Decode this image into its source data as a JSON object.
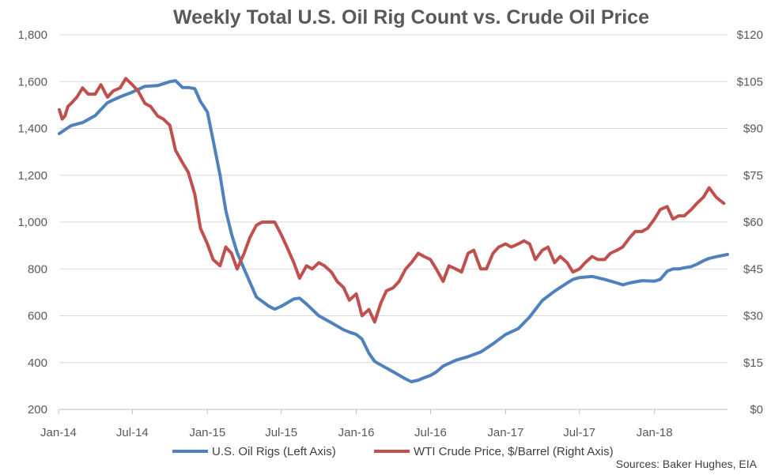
{
  "chart_data": {
    "type": "line",
    "title": "Weekly Total U.S. Oil Rig Count vs. Crude Oil Price",
    "source": "Sources: Baker Hughes, EIA",
    "x_axis": {
      "ticks": [
        "Jan-14",
        "Jul-14",
        "Jan-15",
        "Jul-15",
        "Jan-16",
        "Jul-16",
        "Jan-17",
        "Jul-17",
        "Jan-18"
      ],
      "range": [
        "2014-01-03",
        "2018-06-29"
      ]
    },
    "y_left": {
      "ylim": [
        200,
        1800
      ],
      "ticks": [
        "200",
        "400",
        "600",
        "800",
        "1,000",
        "1,200",
        "1,400",
        "1,600",
        "1,800"
      ]
    },
    "y_right": {
      "ylim": [
        0,
        120
      ],
      "ticks": [
        "$0",
        "$15",
        "$30",
        "$45",
        "$60",
        "$75",
        "$90",
        "$105",
        "$120"
      ]
    },
    "grid": true,
    "legend_position": "bottom",
    "series": [
      {
        "name": "U.S. Oil Rigs (Left Axis)",
        "axis": "left",
        "color": "#4f81bd",
        "points": [
          [
            "2014-01-03",
            1378
          ],
          [
            "2014-02-01",
            1412
          ],
          [
            "2014-03-01",
            1425
          ],
          [
            "2014-04-01",
            1455
          ],
          [
            "2014-05-01",
            1510
          ],
          [
            "2014-06-01",
            1535
          ],
          [
            "2014-07-01",
            1555
          ],
          [
            "2014-08-01",
            1580
          ],
          [
            "2014-09-01",
            1583
          ],
          [
            "2014-10-01",
            1600
          ],
          [
            "2014-10-15",
            1604
          ],
          [
            "2014-11-01",
            1575
          ],
          [
            "2014-11-15",
            1575
          ],
          [
            "2014-12-01",
            1570
          ],
          [
            "2014-12-15",
            1515
          ],
          [
            "2015-01-01",
            1470
          ],
          [
            "2015-01-15",
            1350
          ],
          [
            "2015-02-01",
            1200
          ],
          [
            "2015-02-15",
            1050
          ],
          [
            "2015-03-01",
            950
          ],
          [
            "2015-03-15",
            870
          ],
          [
            "2015-04-01",
            800
          ],
          [
            "2015-05-01",
            680
          ],
          [
            "2015-06-01",
            640
          ],
          [
            "2015-06-15",
            628
          ],
          [
            "2015-07-01",
            640
          ],
          [
            "2015-08-01",
            672
          ],
          [
            "2015-08-15",
            675
          ],
          [
            "2015-09-01",
            650
          ],
          [
            "2015-10-01",
            600
          ],
          [
            "2015-11-01",
            570
          ],
          [
            "2015-12-01",
            540
          ],
          [
            "2015-12-15",
            530
          ],
          [
            "2016-01-01",
            520
          ],
          [
            "2016-01-15",
            500
          ],
          [
            "2016-02-01",
            440
          ],
          [
            "2016-02-15",
            405
          ],
          [
            "2016-03-01",
            390
          ],
          [
            "2016-04-01",
            360
          ],
          [
            "2016-05-01",
            330
          ],
          [
            "2016-05-15",
            318
          ],
          [
            "2016-06-01",
            325
          ],
          [
            "2016-06-15",
            335
          ],
          [
            "2016-07-01",
            345
          ],
          [
            "2016-07-15",
            360
          ],
          [
            "2016-08-01",
            385
          ],
          [
            "2016-09-01",
            410
          ],
          [
            "2016-10-01",
            425
          ],
          [
            "2016-11-01",
            445
          ],
          [
            "2016-12-01",
            480
          ],
          [
            "2016-12-15",
            498
          ],
          [
            "2017-01-01",
            520
          ],
          [
            "2017-02-01",
            545
          ],
          [
            "2017-03-01",
            595
          ],
          [
            "2017-04-01",
            665
          ],
          [
            "2017-05-01",
            705
          ],
          [
            "2017-06-01",
            740
          ],
          [
            "2017-06-15",
            755
          ],
          [
            "2017-07-01",
            763
          ],
          [
            "2017-08-01",
            768
          ],
          [
            "2017-09-01",
            755
          ],
          [
            "2017-10-01",
            740
          ],
          [
            "2017-10-15",
            732
          ],
          [
            "2017-11-01",
            740
          ],
          [
            "2017-12-01",
            750
          ],
          [
            "2018-01-01",
            748
          ],
          [
            "2018-01-15",
            755
          ],
          [
            "2018-02-01",
            790
          ],
          [
            "2018-02-15",
            800
          ],
          [
            "2018-03-01",
            800
          ],
          [
            "2018-03-15",
            805
          ],
          [
            "2018-04-01",
            810
          ],
          [
            "2018-04-15",
            820
          ],
          [
            "2018-05-01",
            835
          ],
          [
            "2018-05-15",
            845
          ],
          [
            "2018-06-01",
            852
          ],
          [
            "2018-06-29",
            862
          ]
        ]
      },
      {
        "name": "WTI Crude Price, $/Barrel (Right Axis)",
        "axis": "right",
        "color": "#c0504d",
        "points": [
          [
            "2014-01-03",
            96
          ],
          [
            "2014-01-10",
            93
          ],
          [
            "2014-01-17",
            94
          ],
          [
            "2014-01-24",
            97
          ],
          [
            "2014-02-01",
            98
          ],
          [
            "2014-02-15",
            100
          ],
          [
            "2014-03-01",
            103
          ],
          [
            "2014-03-15",
            101
          ],
          [
            "2014-04-01",
            101
          ],
          [
            "2014-04-15",
            104
          ],
          [
            "2014-05-01",
            100
          ],
          [
            "2014-05-15",
            102
          ],
          [
            "2014-06-01",
            103
          ],
          [
            "2014-06-15",
            106
          ],
          [
            "2014-07-01",
            104
          ],
          [
            "2014-07-15",
            102
          ],
          [
            "2014-08-01",
            98
          ],
          [
            "2014-08-15",
            97
          ],
          [
            "2014-09-01",
            94
          ],
          [
            "2014-09-15",
            93
          ],
          [
            "2014-10-01",
            91
          ],
          [
            "2014-10-15",
            83
          ],
          [
            "2014-11-01",
            79
          ],
          [
            "2014-11-15",
            76
          ],
          [
            "2014-12-01",
            69
          ],
          [
            "2014-12-15",
            58
          ],
          [
            "2015-01-01",
            53
          ],
          [
            "2015-01-15",
            48
          ],
          [
            "2015-02-01",
            46
          ],
          [
            "2015-02-15",
            52
          ],
          [
            "2015-03-01",
            50
          ],
          [
            "2015-03-15",
            45
          ],
          [
            "2015-04-01",
            50
          ],
          [
            "2015-04-15",
            55
          ],
          [
            "2015-05-01",
            59
          ],
          [
            "2015-05-15",
            60
          ],
          [
            "2015-06-01",
            60
          ],
          [
            "2015-06-15",
            60
          ],
          [
            "2015-07-01",
            56
          ],
          [
            "2015-07-15",
            52
          ],
          [
            "2015-08-01",
            47
          ],
          [
            "2015-08-15",
            42
          ],
          [
            "2015-09-01",
            46
          ],
          [
            "2015-09-15",
            45
          ],
          [
            "2015-10-01",
            47
          ],
          [
            "2015-10-15",
            46
          ],
          [
            "2015-11-01",
            44
          ],
          [
            "2015-11-15",
            41
          ],
          [
            "2015-12-01",
            39
          ],
          [
            "2015-12-15",
            35
          ],
          [
            "2016-01-01",
            37
          ],
          [
            "2016-01-15",
            30
          ],
          [
            "2016-02-01",
            32
          ],
          [
            "2016-02-15",
            28
          ],
          [
            "2016-03-01",
            34
          ],
          [
            "2016-03-15",
            38
          ],
          [
            "2016-04-01",
            39
          ],
          [
            "2016-04-15",
            41
          ],
          [
            "2016-05-01",
            45
          ],
          [
            "2016-05-15",
            47
          ],
          [
            "2016-06-01",
            50
          ],
          [
            "2016-06-15",
            49
          ],
          [
            "2016-07-01",
            48
          ],
          [
            "2016-07-15",
            45
          ],
          [
            "2016-08-01",
            41
          ],
          [
            "2016-08-15",
            46
          ],
          [
            "2016-09-01",
            45
          ],
          [
            "2016-09-15",
            44
          ],
          [
            "2016-10-01",
            50
          ],
          [
            "2016-10-15",
            51
          ],
          [
            "2016-11-01",
            45
          ],
          [
            "2016-11-15",
            45
          ],
          [
            "2016-12-01",
            50
          ],
          [
            "2016-12-15",
            52
          ],
          [
            "2017-01-01",
            53
          ],
          [
            "2017-01-15",
            52
          ],
          [
            "2017-02-01",
            53
          ],
          [
            "2017-02-15",
            54
          ],
          [
            "2017-03-01",
            53
          ],
          [
            "2017-03-15",
            48
          ],
          [
            "2017-04-01",
            51
          ],
          [
            "2017-04-15",
            52
          ],
          [
            "2017-05-01",
            47
          ],
          [
            "2017-05-15",
            49
          ],
          [
            "2017-06-01",
            47
          ],
          [
            "2017-06-15",
            44
          ],
          [
            "2017-07-01",
            45
          ],
          [
            "2017-07-15",
            47
          ],
          [
            "2017-08-01",
            49
          ],
          [
            "2017-08-15",
            48
          ],
          [
            "2017-09-01",
            48
          ],
          [
            "2017-09-15",
            50
          ],
          [
            "2017-10-01",
            51
          ],
          [
            "2017-10-15",
            52
          ],
          [
            "2017-11-01",
            55
          ],
          [
            "2017-11-15",
            57
          ],
          [
            "2017-12-01",
            57
          ],
          [
            "2017-12-15",
            58
          ],
          [
            "2018-01-01",
            61
          ],
          [
            "2018-01-15",
            64
          ],
          [
            "2018-02-01",
            65
          ],
          [
            "2018-02-15",
            61
          ],
          [
            "2018-03-01",
            62
          ],
          [
            "2018-03-15",
            62
          ],
          [
            "2018-04-01",
            64
          ],
          [
            "2018-04-15",
            66
          ],
          [
            "2018-05-01",
            68
          ],
          [
            "2018-05-15",
            71
          ],
          [
            "2018-06-01",
            68
          ],
          [
            "2018-06-10",
            67
          ],
          [
            "2018-06-20",
            66
          ]
        ]
      }
    ]
  }
}
